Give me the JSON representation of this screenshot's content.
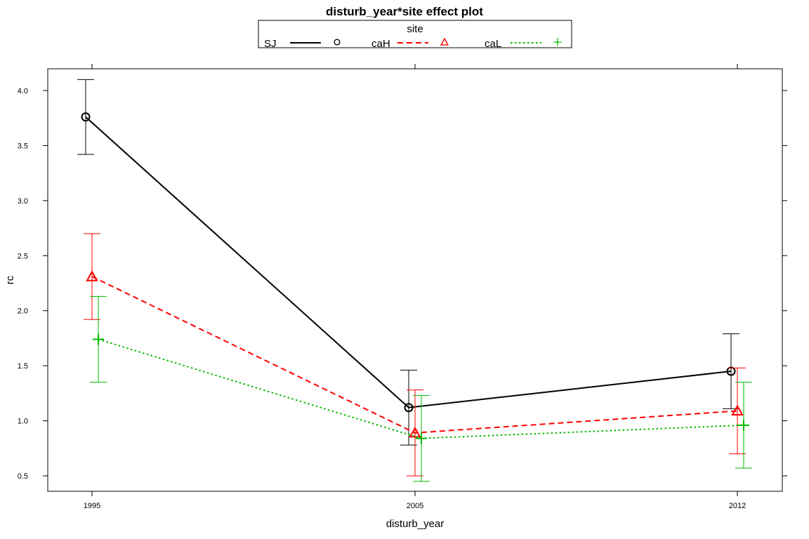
{
  "chart_data": {
    "type": "line",
    "title": "disturb_year*site effect plot",
    "xlabel": "disturb_year",
    "ylabel": "rc",
    "categories": [
      "1995",
      "2005",
      "2012"
    ],
    "ylim": [
      0.45,
      4.2
    ],
    "yticks": [
      "0.5",
      "1.0",
      "1.5",
      "2.0",
      "2.5",
      "3.0",
      "3.5",
      "4.0"
    ],
    "grid": false,
    "legend": {
      "title": "site",
      "placement": "top",
      "entries": [
        "SJ",
        "caH",
        "caL"
      ]
    },
    "series": [
      {
        "name": "SJ",
        "color": "#000000",
        "line_style": "solid",
        "marker": "circle",
        "values": [
          3.76,
          1.12,
          1.45
        ],
        "lower": [
          3.42,
          0.78,
          1.11
        ],
        "upper": [
          4.1,
          1.46,
          1.79
        ]
      },
      {
        "name": "caH",
        "color": "#ff0000",
        "line_style": "dashed",
        "marker": "triangle",
        "values": [
          2.31,
          0.89,
          1.09
        ],
        "lower": [
          1.92,
          0.5,
          0.7
        ],
        "upper": [
          2.7,
          1.28,
          1.48
        ]
      },
      {
        "name": "caL",
        "color": "#00bb00",
        "line_style": "dotted",
        "marker": "plus",
        "values": [
          1.74,
          0.84,
          0.96
        ],
        "lower": [
          1.35,
          0.45,
          0.57
        ],
        "upper": [
          2.13,
          1.23,
          1.35
        ]
      }
    ]
  }
}
